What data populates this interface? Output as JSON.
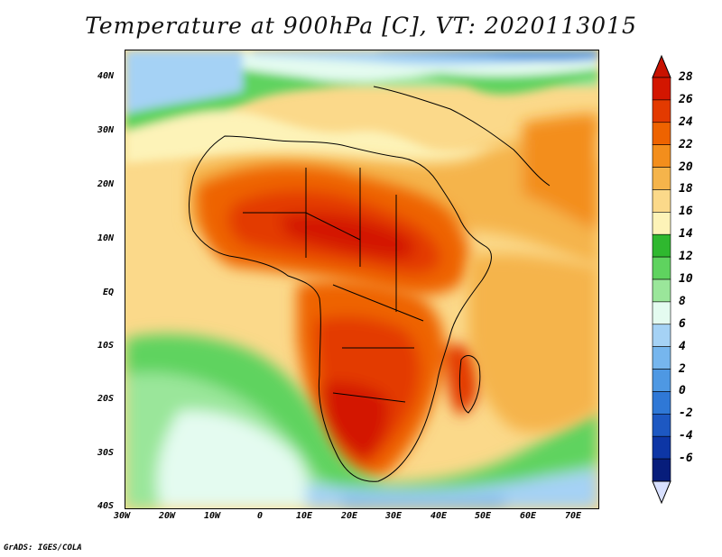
{
  "title": "Temperature at 900hPa [C], VT: 2020113015",
  "credit": "GrADS: IGES/COLA",
  "map": {
    "lat_labels": [
      "40N",
      "30N",
      "20N",
      "10N",
      "EQ",
      "10S",
      "20S",
      "30S",
      "40S"
    ],
    "lon_labels": [
      "30W",
      "20W",
      "10W",
      "0",
      "10E",
      "20E",
      "30E",
      "40E",
      "50E",
      "60E",
      "70E"
    ],
    "lat_range": [
      -40,
      45
    ],
    "lon_range": [
      -30,
      75
    ]
  },
  "colorbar": {
    "labels": [
      "28",
      "26",
      "24",
      "22",
      "20",
      "18",
      "16",
      "14",
      "12",
      "10",
      "8",
      "6",
      "4",
      "2",
      "0",
      "-2",
      "-4",
      "-6"
    ],
    "colors": [
      "#d31600",
      "#e33a00",
      "#ee6300",
      "#f38e1c",
      "#f5b44b",
      "#fbd98a",
      "#fdf3b8",
      "#2fb82f",
      "#5fd35f",
      "#9ae69a",
      "#e4fbf0",
      "#a5d2f5",
      "#76b6ee",
      "#4e98e3",
      "#2f78d6",
      "#1d58c2",
      "#0d36a5",
      "#071d7b"
    ],
    "top_arrow_color": "#c81200",
    "bottom_arrow_color": "#d8e0ff"
  }
}
